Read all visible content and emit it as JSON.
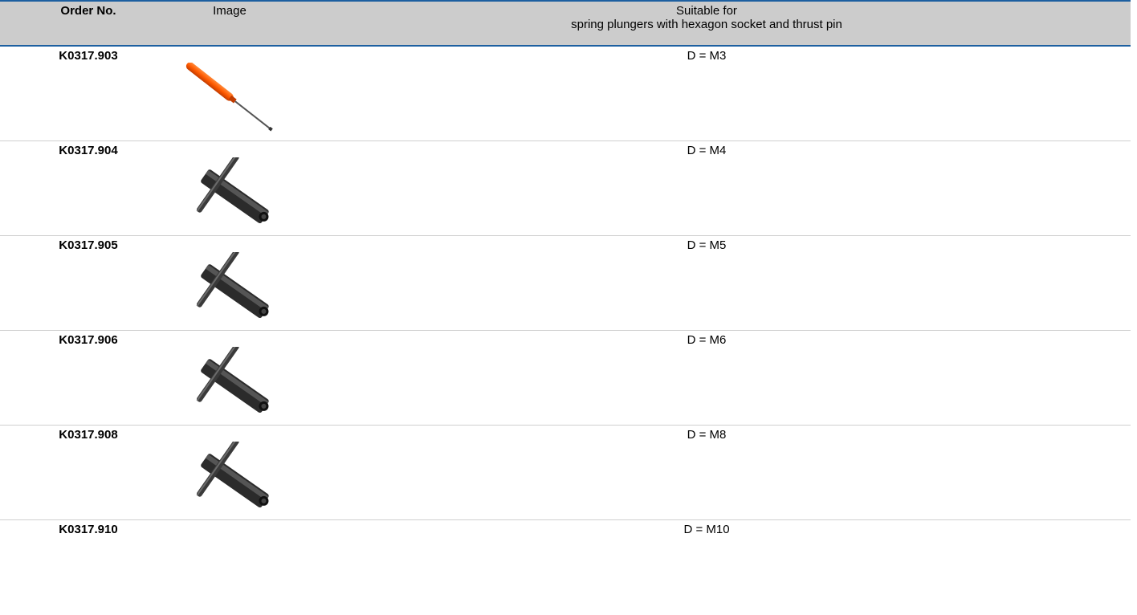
{
  "header": {
    "order_no": "Order No.",
    "image": "Image",
    "suitable_line1": "Suitable for",
    "suitable_line2": "spring plungers with hexagon socket and thrust pin"
  },
  "rows": [
    {
      "order_no": "K0317.903",
      "suitable": "D = M3",
      "image_icon": "screwdriver-icon"
    },
    {
      "order_no": "K0317.904",
      "suitable": "D = M4",
      "image_icon": "t-wrench-icon"
    },
    {
      "order_no": "K0317.905",
      "suitable": "D = M5",
      "image_icon": "t-wrench-icon"
    },
    {
      "order_no": "K0317.906",
      "suitable": "D = M6",
      "image_icon": "t-wrench-icon"
    },
    {
      "order_no": "K0317.908",
      "suitable": "D = M8",
      "image_icon": "t-wrench-icon"
    },
    {
      "order_no": "K0317.910",
      "suitable": "D = M10",
      "image_icon": "none"
    }
  ],
  "colors": {
    "header_bg": "#cccccc",
    "header_border": "#1d5fa0",
    "row_divider": "#cfcfcf",
    "screwdriver_handle": "#ff5a00",
    "wrench_body": "#2b2b2b"
  }
}
